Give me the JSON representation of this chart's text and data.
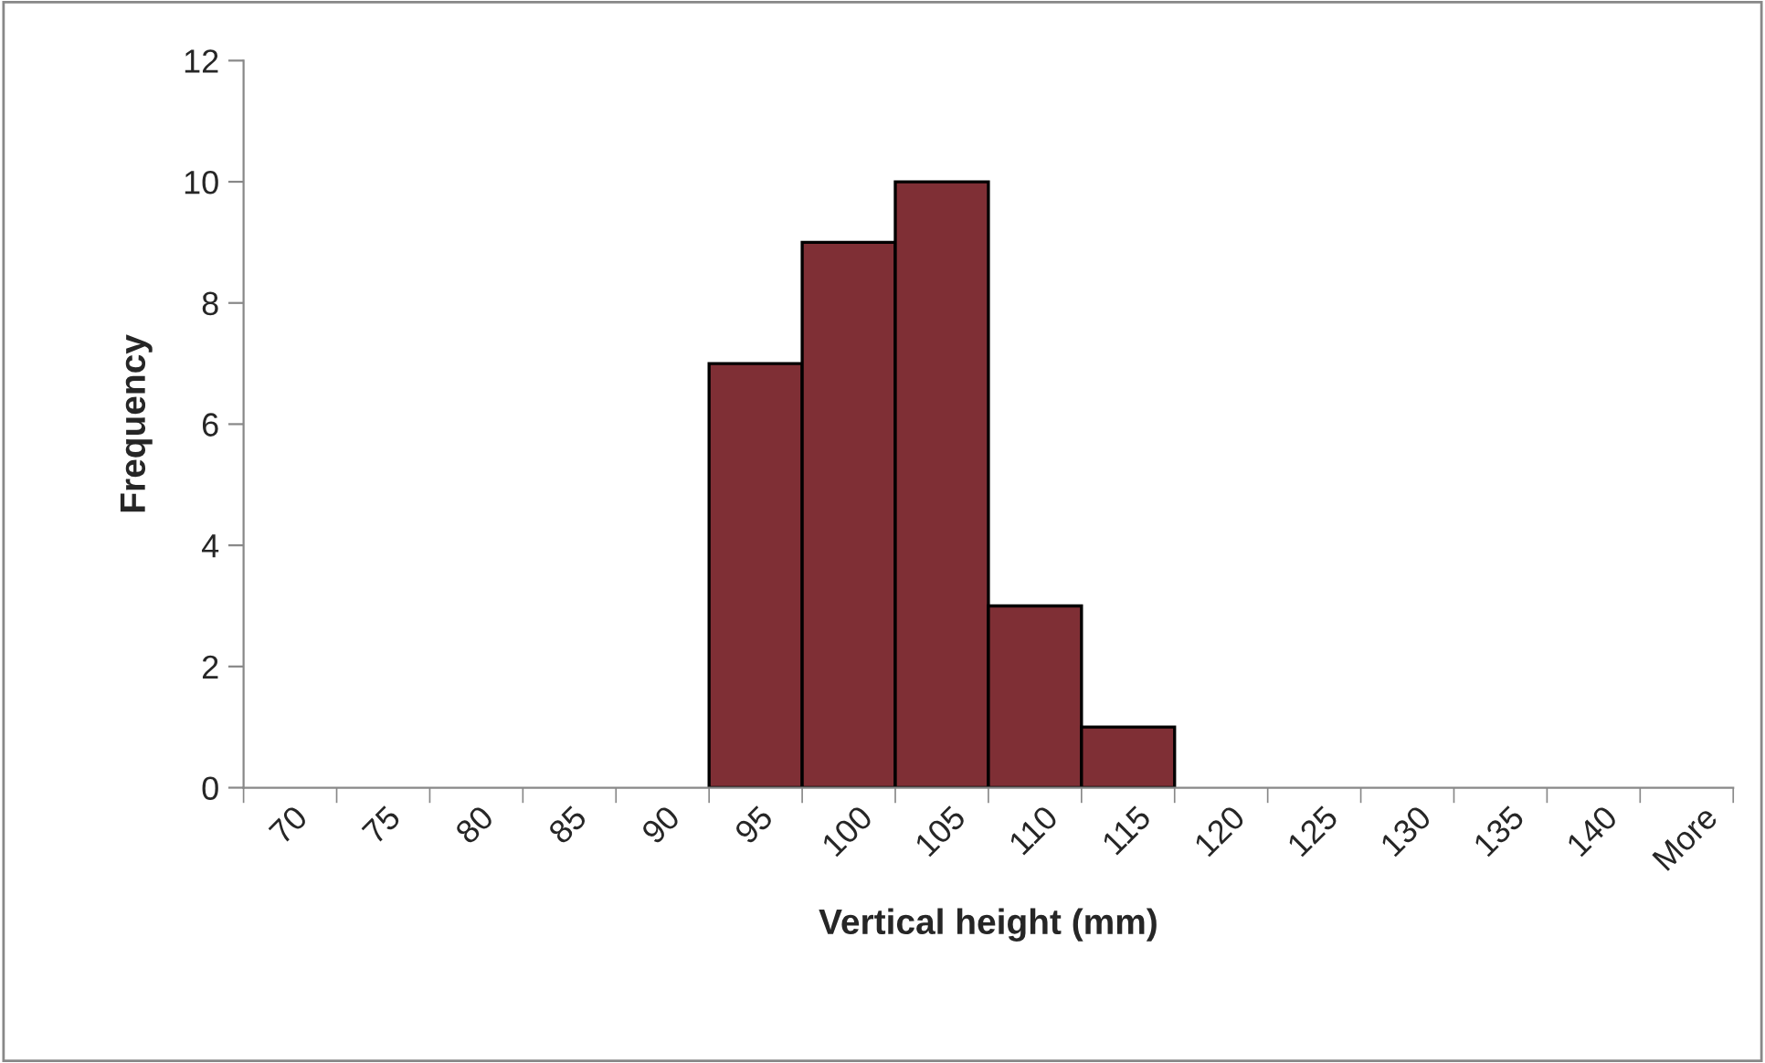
{
  "chart_data": {
    "type": "bar",
    "xlabel": "Vertical height (mm)",
    "ylabel": "Frequency",
    "categories": [
      "70",
      "75",
      "80",
      "85",
      "90",
      "95",
      "100",
      "105",
      "110",
      "115",
      "120",
      "125",
      "130",
      "135",
      "140",
      "More"
    ],
    "values": [
      0,
      0,
      0,
      0,
      0,
      7,
      9,
      10,
      3,
      1,
      0,
      0,
      0,
      0,
      0,
      0
    ],
    "color": "#7f2f35",
    "ylim": [
      0,
      12
    ],
    "yticks": [
      0,
      2,
      4,
      6,
      8,
      10,
      12
    ],
    "grid": false,
    "legend": false
  }
}
